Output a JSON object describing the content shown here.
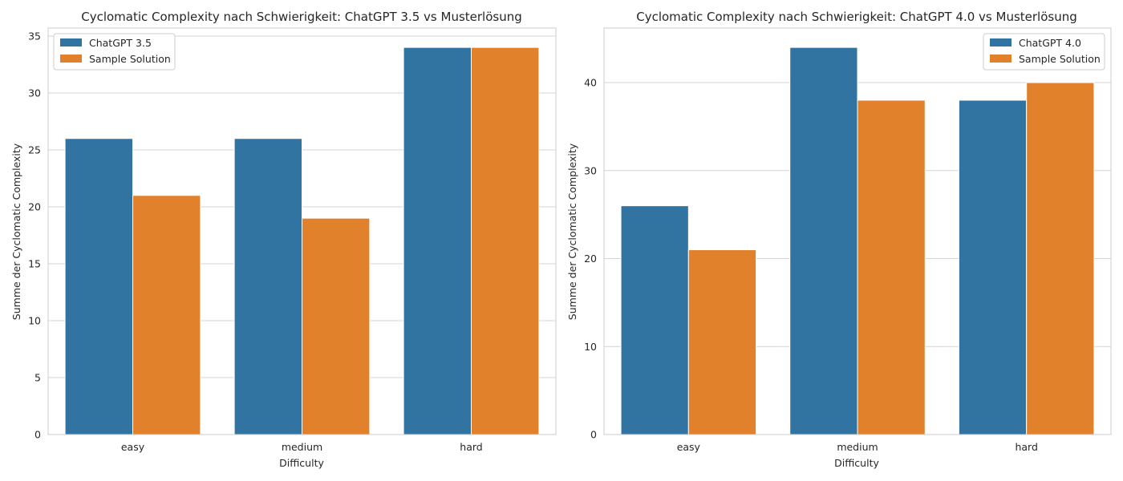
{
  "chart_data": [
    {
      "type": "bar",
      "title": "Cyclomatic Complexity nach Schwierigkeit: ChatGPT 3.5 vs Musterlösung",
      "xlabel": "Difficulty",
      "ylabel": "Summe der Cyclomatic Complexity",
      "categories": [
        "easy",
        "medium",
        "hard"
      ],
      "series": [
        {
          "name": "ChatGPT 3.5",
          "values": [
            26,
            26,
            34
          ],
          "color": "#3274a1"
        },
        {
          "name": "Sample Solution",
          "values": [
            21,
            19,
            34
          ],
          "color": "#e1812c"
        }
      ],
      "ylim": [
        0,
        35.7
      ],
      "yticks": [
        0,
        5,
        10,
        15,
        20,
        25,
        30,
        35
      ],
      "grid": true,
      "legend": "top-left"
    },
    {
      "type": "bar",
      "title": "Cyclomatic Complexity nach Schwierigkeit: ChatGPT 4.0 vs Musterlösung",
      "xlabel": "Difficulty",
      "ylabel": "Summe der Cyclomatic Complexity",
      "categories": [
        "easy",
        "medium",
        "hard"
      ],
      "series": [
        {
          "name": "ChatGPT 4.0",
          "values": [
            26,
            44,
            38
          ],
          "color": "#3274a1"
        },
        {
          "name": "Sample Solution",
          "values": [
            21,
            38,
            40
          ],
          "color": "#e1812c"
        }
      ],
      "ylim": [
        0,
        46.2
      ],
      "yticks": [
        0,
        10,
        20,
        30,
        40
      ],
      "grid": true,
      "legend": "top-right"
    }
  ]
}
